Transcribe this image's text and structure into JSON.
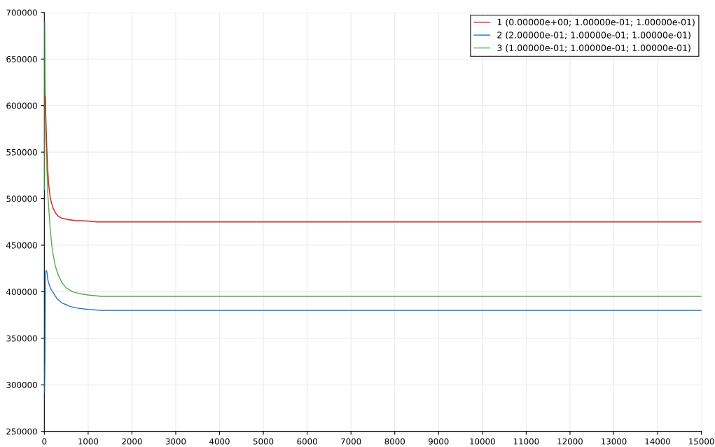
{
  "chart_data": {
    "type": "line",
    "xlim": [
      0,
      15000
    ],
    "xticks": [
      0,
      1000,
      2000,
      3000,
      4000,
      5000,
      6000,
      7000,
      8000,
      9000,
      10000,
      11000,
      12000,
      13000,
      14000,
      15000
    ],
    "ylim": [
      250000,
      700000
    ],
    "yticks": [
      250000,
      300000,
      350000,
      400000,
      450000,
      500000,
      550000,
      600000,
      650000,
      700000
    ],
    "grid": true,
    "legend": "top right",
    "series": [
      {
        "name": "1 (0.00000e+00; 1.00000e-01; 1.00000e-01)",
        "color": "#e41a1c",
        "x": [
          20,
          30,
          45,
          60,
          80,
          100,
          130,
          160,
          200,
          250,
          320,
          400,
          550,
          700,
          1000,
          1200,
          15000
        ],
        "values": [
          610000,
          590000,
          570000,
          550000,
          530000,
          515000,
          503000,
          496000,
          490000,
          485000,
          481000,
          479000,
          477500,
          476500,
          476000,
          475000,
          475000
        ]
      },
      {
        "name": "2 (2.00000e-01; 1.00000e-01; 1.00000e-01)",
        "color": "#1f78c8",
        "x": [
          5,
          15,
          25,
          40,
          60,
          80,
          100,
          150,
          200,
          300,
          400,
          500,
          600,
          800,
          1000,
          1300,
          15000
        ],
        "values": [
          292000,
          330000,
          420000,
          423000,
          421000,
          413000,
          409000,
          403000,
          399000,
          392000,
          388000,
          386000,
          384000,
          382000,
          381000,
          380000,
          380000
        ]
      },
      {
        "name": "3 (1.00000e-01; 1.00000e-01; 1.00000e-01)",
        "color": "#4daf4a",
        "x": [
          5,
          10,
          15,
          20,
          30,
          45,
          60,
          80,
          100,
          130,
          170,
          200,
          250,
          300,
          400,
          500,
          650,
          800,
          1000,
          1300,
          15000
        ],
        "values": [
          510000,
          690000,
          655000,
          620000,
          600000,
          560000,
          530000,
          505000,
          490000,
          470000,
          450000,
          440000,
          428000,
          420000,
          410000,
          404000,
          400000,
          398000,
          396500,
          395000,
          395000
        ]
      }
    ]
  }
}
